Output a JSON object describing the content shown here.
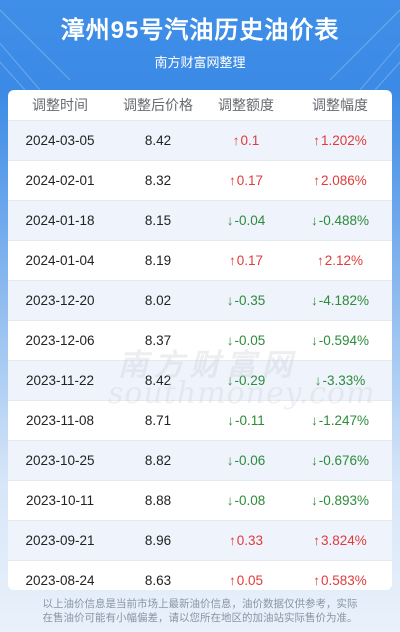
{
  "header": {
    "title": "漳州95号汽油历史油价表",
    "subtitle": "南方财富网整理"
  },
  "table": {
    "columns": [
      "调整时间",
      "调整后价格",
      "调整额度",
      "调整幅度"
    ],
    "rows": [
      {
        "date": "2024-03-05",
        "price": "8.42",
        "amount": "0.1",
        "percent": "1.202%",
        "direction": "up"
      },
      {
        "date": "2024-02-01",
        "price": "8.32",
        "amount": "0.17",
        "percent": "2.086%",
        "direction": "up"
      },
      {
        "date": "2024-01-18",
        "price": "8.15",
        "amount": "-0.04",
        "percent": "-0.488%",
        "direction": "down"
      },
      {
        "date": "2024-01-04",
        "price": "8.19",
        "amount": "0.17",
        "percent": "2.12%",
        "direction": "up"
      },
      {
        "date": "2023-12-20",
        "price": "8.02",
        "amount": "-0.35",
        "percent": "-4.182%",
        "direction": "down"
      },
      {
        "date": "2023-12-06",
        "price": "8.37",
        "amount": "-0.05",
        "percent": "-0.594%",
        "direction": "down"
      },
      {
        "date": "2023-11-22",
        "price": "8.42",
        "amount": "-0.29",
        "percent": "-3.33%",
        "direction": "down"
      },
      {
        "date": "2023-11-08",
        "price": "8.71",
        "amount": "-0.11",
        "percent": "-1.247%",
        "direction": "down"
      },
      {
        "date": "2023-10-25",
        "price": "8.82",
        "amount": "-0.06",
        "percent": "-0.676%",
        "direction": "down"
      },
      {
        "date": "2023-10-11",
        "price": "8.88",
        "amount": "-0.08",
        "percent": "-0.893%",
        "direction": "down"
      },
      {
        "date": "2023-09-21",
        "price": "8.96",
        "amount": "0.33",
        "percent": "3.824%",
        "direction": "up"
      },
      {
        "date": "2023-08-24",
        "price": "8.63",
        "amount": "0.05",
        "percent": "0.583%",
        "direction": "up"
      }
    ]
  },
  "watermark": {
    "cn": "南方财富网",
    "en": "southmoney.com"
  },
  "footer": {
    "line1": "以上油价信息是当前市场上最新油价信息，油价数据仅供参考，实际",
    "line2": "在售油价可能有小幅偏差，请以您所在地区的加油站实际售价为准。"
  },
  "icons": {
    "up": "arrow-up-icon",
    "down": "arrow-down-icon"
  },
  "colors": {
    "up": "#e03b3b",
    "down": "#2e8b3a",
    "header_bg": "#3b8ae6",
    "row_shade": "#eef3fc"
  }
}
